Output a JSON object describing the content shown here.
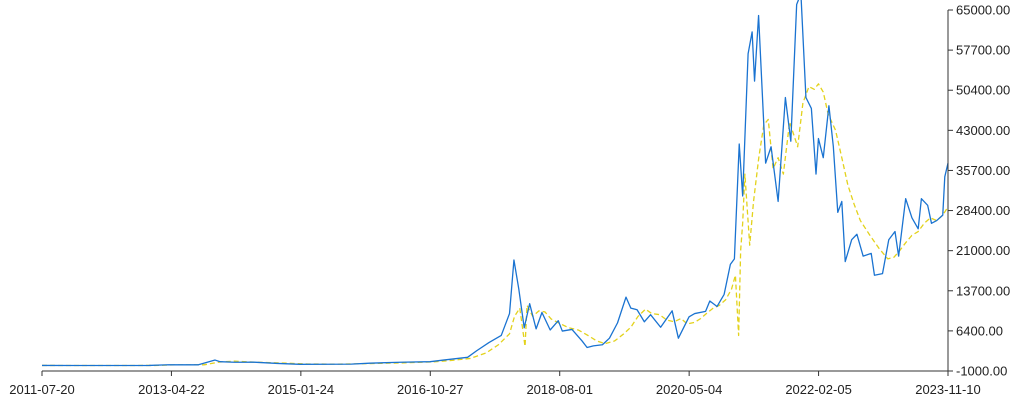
{
  "chart_data": {
    "type": "line",
    "title": "",
    "xlabel": "",
    "ylabel": "",
    "x_tick_labels": [
      "2011-07-20",
      "2013-04-22",
      "2015-01-24",
      "2016-10-27",
      "2018-08-01",
      "2020-05-04",
      "2022-02-05",
      "2023-11-10"
    ],
    "y_tick_labels": [
      "65000.00",
      "57700.00",
      "50400.00",
      "43000.00",
      "35700.00",
      "28400.00",
      "21000.00",
      "13700.00",
      "6400.00",
      "-1000.00"
    ],
    "xlim": [
      "2011-07-20",
      "2023-11-10"
    ],
    "ylim": [
      -1000,
      65000
    ],
    "grid": false,
    "legend": "none",
    "series": [
      {
        "color": "#1a73d1",
        "style": "solid",
        "points": [
          [
            "2011-07-20",
            14
          ],
          [
            "2012-01-01",
            6
          ],
          [
            "2012-06-01",
            6
          ],
          [
            "2013-01-01",
            13
          ],
          [
            "2013-04-10",
            140
          ],
          [
            "2013-09-01",
            130
          ],
          [
            "2013-11-25",
            1000
          ],
          [
            "2013-12-20",
            700
          ],
          [
            "2014-03-01",
            600
          ],
          [
            "2014-06-01",
            620
          ],
          [
            "2014-10-01",
            380
          ],
          [
            "2015-01-20",
            220
          ],
          [
            "2015-06-01",
            230
          ],
          [
            "2015-10-01",
            260
          ],
          [
            "2016-01-01",
            430
          ],
          [
            "2016-06-01",
            600
          ],
          [
            "2016-10-27",
            700
          ],
          [
            "2017-01-01",
            1000
          ],
          [
            "2017-05-01",
            1500
          ],
          [
            "2017-06-15",
            2700
          ],
          [
            "2017-08-15",
            4200
          ],
          [
            "2017-10-15",
            5500
          ],
          [
            "2017-11-25",
            9500
          ],
          [
            "2017-12-17",
            19300
          ],
          [
            "2018-01-10",
            14000
          ],
          [
            "2018-02-06",
            6900
          ],
          [
            "2018-03-05",
            11300
          ],
          [
            "2018-04-06",
            6700
          ],
          [
            "2018-05-05",
            9700
          ],
          [
            "2018-06-15",
            6500
          ],
          [
            "2018-07-25",
            8200
          ],
          [
            "2018-08-14",
            6300
          ],
          [
            "2018-10-01",
            6600
          ],
          [
            "2018-11-20",
            4500
          ],
          [
            "2018-12-15",
            3300
          ],
          [
            "2019-01-15",
            3600
          ],
          [
            "2019-03-01",
            3800
          ],
          [
            "2019-04-05",
            5000
          ],
          [
            "2019-05-15",
            7800
          ],
          [
            "2019-06-26",
            12500
          ],
          [
            "2019-07-20",
            10500
          ],
          [
            "2019-08-20",
            10200
          ],
          [
            "2019-09-25",
            8000
          ],
          [
            "2019-10-26",
            9300
          ],
          [
            "2019-12-15",
            7000
          ],
          [
            "2020-02-10",
            10000
          ],
          [
            "2020-03-12",
            5000
          ],
          [
            "2020-05-04",
            8900
          ],
          [
            "2020-06-01",
            9500
          ],
          [
            "2020-07-25",
            9900
          ],
          [
            "2020-08-15",
            11800
          ],
          [
            "2020-09-20",
            10800
          ],
          [
            "2020-10-25",
            13000
          ],
          [
            "2020-11-25",
            18500
          ],
          [
            "2020-12-15",
            19500
          ],
          [
            "2021-01-08",
            40500
          ],
          [
            "2021-01-25",
            31000
          ],
          [
            "2021-02-21",
            57000
          ],
          [
            "2021-03-13",
            61000
          ],
          [
            "2021-03-25",
            52000
          ],
          [
            "2021-04-14",
            64000
          ],
          [
            "2021-05-19",
            37000
          ],
          [
            "2021-06-15",
            40000
          ],
          [
            "2021-07-20",
            30000
          ],
          [
            "2021-08-25",
            49000
          ],
          [
            "2021-09-21",
            41000
          ],
          [
            "2021-10-20",
            66000
          ],
          [
            "2021-11-10",
            68000
          ],
          [
            "2021-12-05",
            49000
          ],
          [
            "2022-01-01",
            47000
          ],
          [
            "2022-01-24",
            35000
          ],
          [
            "2022-02-05",
            41500
          ],
          [
            "2022-03-01",
            38000
          ],
          [
            "2022-03-29",
            47500
          ],
          [
            "2022-04-20",
            40000
          ],
          [
            "2022-05-12",
            28000
          ],
          [
            "2022-06-01",
            30000
          ],
          [
            "2022-06-18",
            19000
          ],
          [
            "2022-07-20",
            23000
          ],
          [
            "2022-08-15",
            24000
          ],
          [
            "2022-09-15",
            20000
          ],
          [
            "2022-10-25",
            20500
          ],
          [
            "2022-11-10",
            16500
          ],
          [
            "2022-12-20",
            16800
          ],
          [
            "2023-01-20",
            23000
          ],
          [
            "2023-02-20",
            24500
          ],
          [
            "2023-03-10",
            20000
          ],
          [
            "2023-04-14",
            30500
          ],
          [
            "2023-05-15",
            27000
          ],
          [
            "2023-06-15",
            25000
          ],
          [
            "2023-07-01",
            30500
          ],
          [
            "2023-08-01",
            29300
          ],
          [
            "2023-08-20",
            26000
          ],
          [
            "2023-09-15",
            26500
          ],
          [
            "2023-10-15",
            27500
          ],
          [
            "2023-10-25",
            34500
          ],
          [
            "2023-11-10",
            37000
          ]
        ]
      },
      {
        "color": "#e3d21b",
        "style": "dashed",
        "points": [
          [
            "2011-07-20",
            14
          ],
          [
            "2012-06-01",
            6
          ],
          [
            "2013-02-01",
            15
          ],
          [
            "2013-05-10",
            120
          ],
          [
            "2013-10-01",
            130
          ],
          [
            "2013-12-20",
            650
          ],
          [
            "2014-03-01",
            800
          ],
          [
            "2014-06-15",
            600
          ],
          [
            "2014-11-01",
            450
          ],
          [
            "2015-03-01",
            280
          ],
          [
            "2015-08-01",
            250
          ],
          [
            "2016-01-01",
            360
          ],
          [
            "2016-06-01",
            470
          ],
          [
            "2016-11-01",
            650
          ],
          [
            "2017-02-01",
            900
          ],
          [
            "2017-05-15",
            1300
          ],
          [
            "2017-08-01",
            2300
          ],
          [
            "2017-10-01",
            3800
          ],
          [
            "2017-11-25",
            5800
          ],
          [
            "2017-12-20",
            9000
          ],
          [
            "2018-01-15",
            10500
          ],
          [
            "2018-02-10",
            3500
          ],
          [
            "2018-02-20",
            11000
          ],
          [
            "2018-03-20",
            9000
          ],
          [
            "2018-04-20",
            10000
          ],
          [
            "2018-05-20",
            9800
          ],
          [
            "2018-06-20",
            8500
          ],
          [
            "2018-08-01",
            7700
          ],
          [
            "2018-09-15",
            6900
          ],
          [
            "2018-11-01",
            6500
          ],
          [
            "2018-12-15",
            5600
          ],
          [
            "2019-02-01",
            4500
          ],
          [
            "2019-03-15",
            4000
          ],
          [
            "2019-05-01",
            4500
          ],
          [
            "2019-06-15",
            5800
          ],
          [
            "2019-07-20",
            7000
          ],
          [
            "2019-08-25",
            9000
          ],
          [
            "2019-10-01",
            10300
          ],
          [
            "2019-11-01",
            9500
          ],
          [
            "2019-12-10",
            9300
          ],
          [
            "2020-01-15",
            8300
          ],
          [
            "2020-02-20",
            8000
          ],
          [
            "2020-03-25",
            8600
          ],
          [
            "2020-04-25",
            7600
          ],
          [
            "2020-06-01",
            7900
          ],
          [
            "2020-07-01",
            8600
          ],
          [
            "2020-08-01",
            9600
          ],
          [
            "2020-09-01",
            10500
          ],
          [
            "2020-10-01",
            11000
          ],
          [
            "2020-11-01",
            12000
          ],
          [
            "2020-12-01",
            14000
          ],
          [
            "2020-12-20",
            16500
          ],
          [
            "2021-01-05",
            5500
          ],
          [
            "2021-01-15",
            21000
          ],
          [
            "2021-01-25",
            26000
          ],
          [
            "2021-02-05",
            35000
          ],
          [
            "2021-03-01",
            22000
          ],
          [
            "2021-03-20",
            30000
          ],
          [
            "2021-04-15",
            38000
          ],
          [
            "2021-05-10",
            44000
          ],
          [
            "2021-06-01",
            45000
          ],
          [
            "2021-06-25",
            36000
          ],
          [
            "2021-07-20",
            38000
          ],
          [
            "2021-08-15",
            35000
          ],
          [
            "2021-09-15",
            44500
          ],
          [
            "2021-10-25",
            40000
          ],
          [
            "2021-11-20",
            48000
          ],
          [
            "2021-12-20",
            51000
          ],
          [
            "2022-01-15",
            50500
          ],
          [
            "2022-02-05",
            51500
          ],
          [
            "2022-03-01",
            50000
          ],
          [
            "2022-03-25",
            46000
          ],
          [
            "2022-05-01",
            43000
          ],
          [
            "2022-06-01",
            38000
          ],
          [
            "2022-07-01",
            33000
          ],
          [
            "2022-08-01",
            29500
          ],
          [
            "2022-09-01",
            26500
          ],
          [
            "2022-10-15",
            24000
          ],
          [
            "2022-12-01",
            21500
          ],
          [
            "2023-01-15",
            19500
          ],
          [
            "2023-02-15",
            19800
          ],
          [
            "2023-03-15",
            21000
          ],
          [
            "2023-04-15",
            22500
          ],
          [
            "2023-05-15",
            23800
          ],
          [
            "2023-06-15",
            24500
          ],
          [
            "2023-07-15",
            26000
          ],
          [
            "2023-08-15",
            27000
          ],
          [
            "2023-09-15",
            26500
          ],
          [
            "2023-10-15",
            27500
          ],
          [
            "2023-11-10",
            29000
          ]
        ]
      }
    ]
  }
}
